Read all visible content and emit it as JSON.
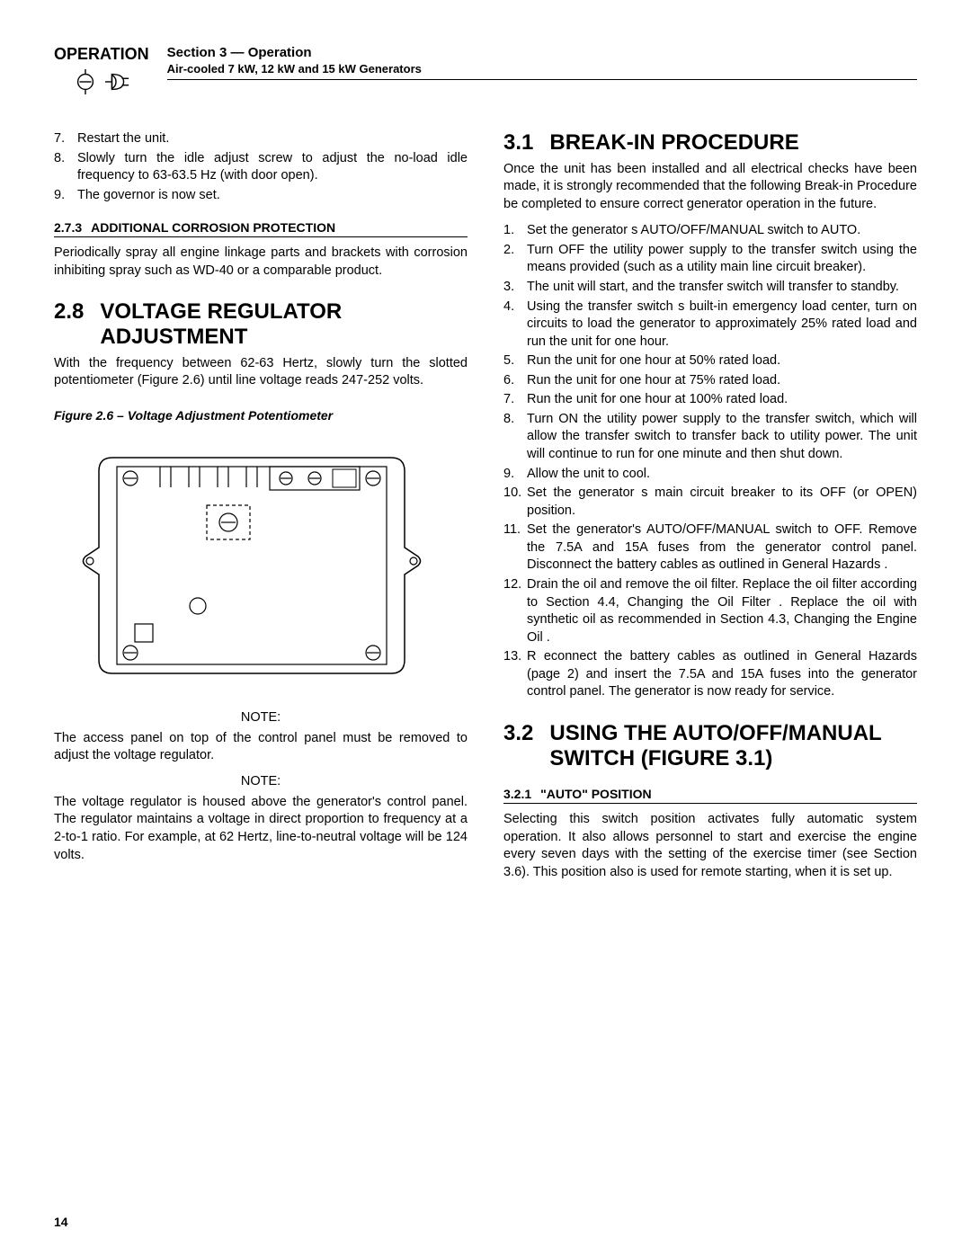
{
  "header": {
    "operation": "OPERATION",
    "section": "Section 3 — Operation",
    "subtitle": "Air-cooled 7 kW, 12 kW and 15 kW Generators"
  },
  "col1": {
    "list1": [
      {
        "n": "7.",
        "t": "Restart the unit."
      },
      {
        "n": "8.",
        "t": "Slowly turn the idle adjust screw to adjust the no-load idle frequency to 63-63.5 Hz (with door open)."
      },
      {
        "n": "9.",
        "t": "The governor is now set."
      }
    ],
    "h3_273_num": "2.7.3",
    "h3_273_txt": "ADDITIONAL CORROSION PROTECTION",
    "p273": "Periodically spray all engine linkage parts and brackets with corrosion inhibiting spray such as WD-40 or a comparable product.",
    "h2_28_num": "2.8",
    "h2_28_txt": "VOLTAGE REGULATOR ADJUSTMENT",
    "p28": "With the frequency between 62-63 Hertz, slowly turn the slotted potentiometer (Figure 2.6) until line voltage reads 247-252 volts.",
    "fig_caption": "Figure 2.6 – Voltage Adjustment Potentiometer",
    "note_label1": "NOTE:",
    "note1": "The access panel on top of the control panel must be removed to adjust the voltage regulator.",
    "note_label2": "NOTE:",
    "note2": "The voltage regulator is housed above the generator's control panel. The regulator maintains a voltage in direct proportion to frequency at a 2-to-1 ratio. For example, at 62 Hertz, line-to-neutral voltage will be 124 volts."
  },
  "col2": {
    "h2_31_num": "3.1",
    "h2_31_txt": "BREAK-IN PROCEDURE",
    "p31": "Once the unit has been installed and all electrical checks have been made, it is strongly recommended that the following  Break-in Procedure  be completed to ensure correct generator operation in the future.",
    "list31": [
      {
        "n": "1.",
        "t": "Set the generator s AUTO/OFF/MANUAL switch to AUTO."
      },
      {
        "n": "2.",
        "t": "Turn OFF the utility power supply to the transfer switch using the means provided (such as a utility main line circuit breaker)."
      },
      {
        "n": "3.",
        "t": "The unit will start, and the transfer switch will transfer to standby."
      },
      {
        "n": "4.",
        "t": "Using the transfer switch s built-in emergency load center, turn on circuits to load the generator to approximately 25% rated load and run the unit for one hour."
      },
      {
        "n": "5.",
        "t": "Run the unit for one hour at 50% rated load."
      },
      {
        "n": "6.",
        "t": "Run the unit for one hour at 75% rated load."
      },
      {
        "n": "7.",
        "t": "Run the unit for one hour at 100% rated load."
      },
      {
        "n": "8.",
        "t": "Turn ON the utility power supply to the transfer switch, which will allow the transfer switch to transfer back to utility power. The unit will continue to run for one minute and then shut down."
      },
      {
        "n": "9.",
        "t": "Allow the unit to cool."
      },
      {
        "n": "10.",
        "t": "Set the generator s main circuit breaker to its OFF (or OPEN) position."
      },
      {
        "n": "11.",
        "t": "Set the generator's AUTO/OFF/MANUAL switch to OFF. Remove the 7.5A and 15A fuses from the generator control panel. Disconnect the battery cables as outlined in  General Hazards ."
      },
      {
        "n": "12.",
        "t": "Drain the oil and remove the oil filter. Replace the oil filter according to Section 4.4,  Changing the Oil Filter . Replace the oil with synthetic oil as recommended in Section 4.3,  Changing the Engine Oil ."
      },
      {
        "n": "13.",
        "t": "R econnect the battery cables as outlined in General Hazards  (page 2) and insert the 7.5A and 15A fuses into the generator control panel. The generator is now ready for service."
      }
    ],
    "h2_32_num": "3.2",
    "h2_32_txt": "USING THE AUTO/OFF/MANUAL SWITCH (FIGURE 3.1)",
    "h3_321_num": "3.2.1",
    "h3_321_txt": "\"AUTO\" POSITION",
    "p321": "Selecting this switch position activates fully automatic system operation. It also allows personnel to start and exercise the engine every seven days with the setting of the exercise timer (see Section 3.6). This position also is used for remote starting, when it is set up."
  },
  "page_num": "14",
  "colors": {
    "text": "#000000",
    "bg": "#ffffff",
    "line": "#000000"
  }
}
